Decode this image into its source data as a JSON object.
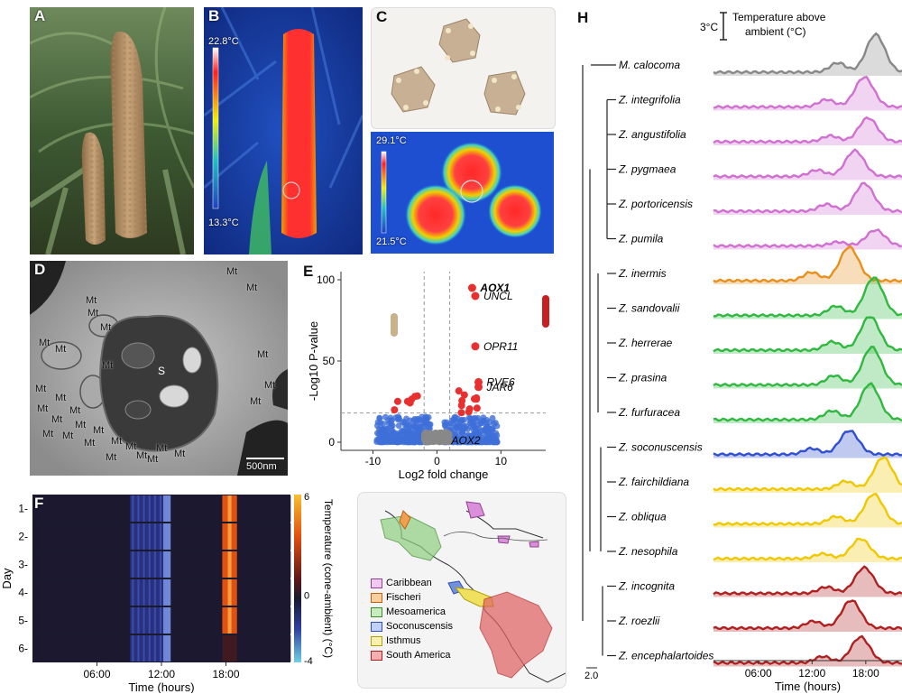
{
  "panels": {
    "A": {
      "label": "A"
    },
    "B": {
      "label": "B",
      "temp_max": "22.8°C",
      "temp_min": "13.3°C"
    },
    "C": {
      "label": "C",
      "temp_max": "29.1°C",
      "temp_min": "21.5°C"
    },
    "D": {
      "label": "D",
      "organelle": "Mt",
      "center_label": "S",
      "scale_bar": "500nm",
      "mt_count": 28
    },
    "E": {
      "label": "E",
      "ylabel": "-Log10 P-value",
      "xlabel": "Log2 fold change",
      "genes": [
        "AOX1",
        "UNCL",
        "OPR11",
        "RVE6",
        "JAR6",
        "AOX2"
      ]
    },
    "F": {
      "label": "F",
      "ylabel": "Day",
      "xlabel": "Time (hours)",
      "day_labels": [
        "1-",
        "2-",
        "3-",
        "4-",
        "5-",
        "6-"
      ],
      "colorbar_label": "Temperature (cone-ambient) (°C)",
      "colorbar_ticks": [
        "6",
        "0",
        "-4"
      ]
    },
    "G": {
      "label": "G",
      "legend": [
        {
          "name": "Caribbean",
          "color": "#d98fd9"
        },
        {
          "name": "Fischeri",
          "color": "#f0a050"
        },
        {
          "name": "Mesoamerica",
          "color": "#8fd080"
        },
        {
          "name": "Soconuscensis",
          "color": "#7090e0"
        },
        {
          "name": "Isthmus",
          "color": "#f0e060"
        },
        {
          "name": "South America",
          "color": "#e06060"
        }
      ]
    },
    "H": {
      "label": "H",
      "scale_label": "3°C",
      "legend_title": "Temperature above ambient (°C)",
      "tree_scale": "2.0",
      "xlabel": "Time (hours)"
    }
  },
  "species": [
    {
      "name": "M. calocoma",
      "color": "#888888",
      "peak": 0.86,
      "h": 0.95
    },
    {
      "name": "Z. integrifolia",
      "color": "#d070d0",
      "peak": 0.8,
      "h": 0.75
    },
    {
      "name": "Z. angustifolia",
      "color": "#d070d0",
      "peak": 0.82,
      "h": 0.6
    },
    {
      "name": "Z. pygmaea",
      "color": "#d070d0",
      "peak": 0.75,
      "h": 0.65
    },
    {
      "name": "Z. portoricensis",
      "color": "#d070d0",
      "peak": 0.8,
      "h": 0.7
    },
    {
      "name": "Z. pumila",
      "color": "#d070d0",
      "peak": 0.86,
      "h": 0.4
    },
    {
      "name": "Z. inermis",
      "color": "#e8901e",
      "peak": 0.72,
      "h": 0.85
    },
    {
      "name": "Z. sandovalii",
      "color": "#30b840",
      "peak": 0.85,
      "h": 0.95
    },
    {
      "name": "Z. herrerae",
      "color": "#30b840",
      "peak": 0.83,
      "h": 0.85
    },
    {
      "name": "Z. prasina",
      "color": "#30b840",
      "peak": 0.84,
      "h": 0.95
    },
    {
      "name": "Z. furfuracea",
      "color": "#30b840",
      "peak": 0.83,
      "h": 0.9
    },
    {
      "name": "Z. soconuscensis",
      "color": "#3050d0",
      "peak": 0.72,
      "h": 0.6
    },
    {
      "name": "Z. fairchildiana",
      "color": "#f0c800",
      "peak": 0.9,
      "h": 0.8
    },
    {
      "name": "Z. obliqua",
      "color": "#f0c800",
      "peak": 0.85,
      "h": 0.75
    },
    {
      "name": "Z. nesophila",
      "color": "#f0c800",
      "peak": 0.78,
      "h": 0.5
    },
    {
      "name": "Z. incognita",
      "color": "#b02020",
      "peak": 0.8,
      "h": 0.65
    },
    {
      "name": "Z. roezlii",
      "color": "#b02020",
      "peak": 0.73,
      "h": 0.7
    },
    {
      "name": "Z. encephalartoides",
      "color": "#b02020",
      "peak": 0.78,
      "h": 0.65
    }
  ],
  "chart_data": [
    {
      "type": "scatter",
      "panel": "E",
      "xlabel": "Log2 fold change",
      "ylabel": "-Log10 P-value",
      "xticks": [
        -10,
        0,
        10
      ],
      "yticks": [
        0,
        50,
        100
      ],
      "xlim": [
        -15,
        17
      ],
      "ylim": [
        -5,
        105
      ],
      "threshold_y": 18,
      "threshold_x": [
        -2,
        2
      ],
      "labeled_points": [
        {
          "label": "AOX1",
          "x": 5.5,
          "y": 95
        },
        {
          "label": "UNCL",
          "x": 6,
          "y": 90
        },
        {
          "label": "OPR11",
          "x": 6,
          "y": 59
        },
        {
          "label": "RVE6",
          "x": 6.5,
          "y": 37
        },
        {
          "label": "JAR6",
          "x": 6.5,
          "y": 34
        },
        {
          "label": "AOX2",
          "x": 1,
          "y": 1
        }
      ]
    },
    {
      "type": "heatmap",
      "panel": "F",
      "xlabel": "Time (hours)",
      "ylabel": "Day",
      "xticks": [
        "06:00",
        "12:00",
        "18:00"
      ],
      "rows": [
        "1",
        "2",
        "3",
        "4",
        "5",
        "6"
      ],
      "colorbar_range": [
        -4,
        6
      ]
    },
    {
      "type": "area",
      "panel": "H",
      "xlabel": "Time (hours)",
      "xticks": [
        "06:00",
        "12:00",
        "18:00"
      ]
    }
  ]
}
